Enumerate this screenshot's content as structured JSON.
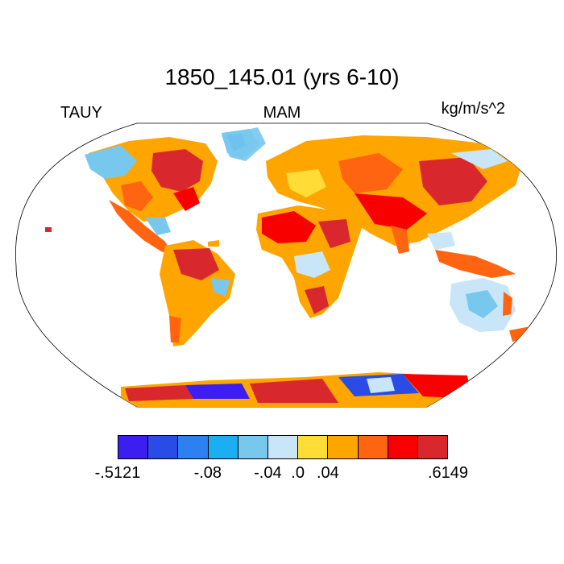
{
  "title": "1850_145.01 (yrs 6-10)",
  "left_label": "TAUY",
  "center_label": "MAM",
  "right_label": "kg/m/s^2",
  "colorbar": {
    "colors": [
      "#3c1ef0",
      "#2a4be6",
      "#2d80f0",
      "#1aaff2",
      "#78c8ee",
      "#c8e6f8",
      "#ffdd36",
      "#ffa500",
      "#ff6410",
      "#f80000",
      "#d8282e"
    ],
    "tick_labels": [
      "-.5121",
      "-.08",
      "-.04",
      ".0",
      ".04",
      ".6149"
    ]
  },
  "map": {
    "projection": "Robinson",
    "variable": "meridional wind stress",
    "land_colored_only": true
  }
}
